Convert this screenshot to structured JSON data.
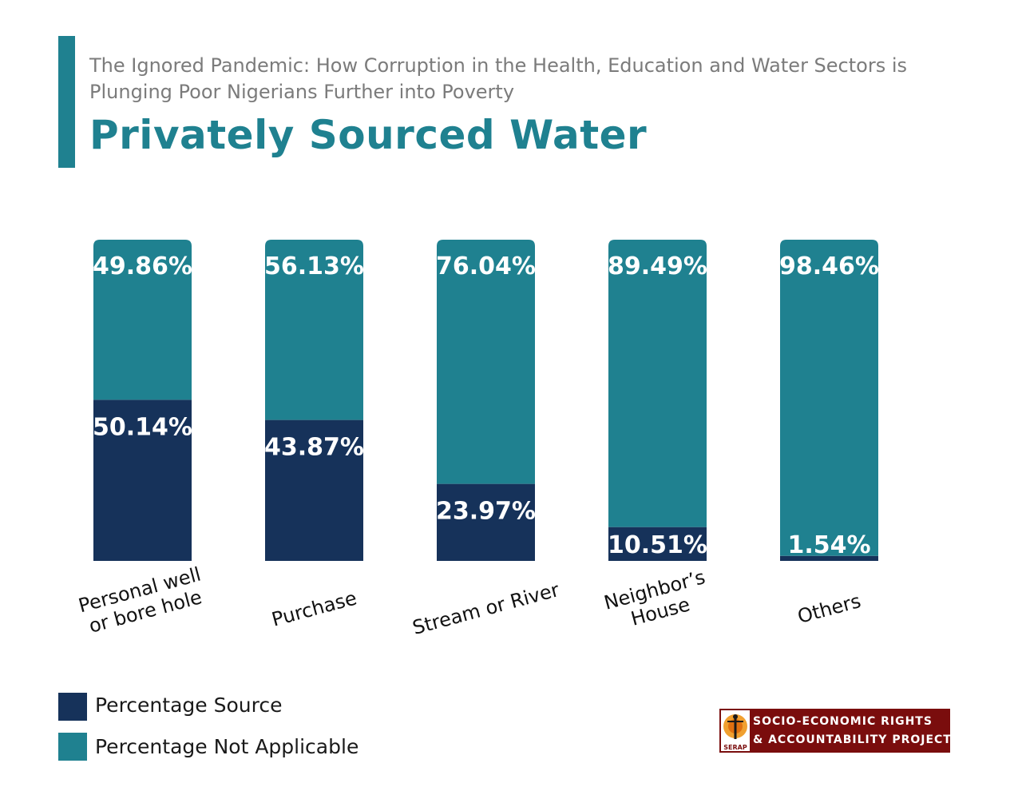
{
  "header": {
    "subtitle": "The Ignored Pandemic: How Corruption in the Health, Education and Water Sectors is Plunging Poor Nigerians Further into Poverty",
    "title": "Privately Sourced Water"
  },
  "colors": {
    "source": "#16325a",
    "not_applicable": "#1f8190",
    "accent": "#1f8190",
    "logo_bg": "#7a0d0d"
  },
  "chart_data": {
    "type": "bar",
    "stacked": true,
    "categories": [
      [
        "Personal well",
        "or bore hole"
      ],
      [
        "Purchase"
      ],
      [
        "Stream or River"
      ],
      [
        "Neighbor’s",
        "House"
      ],
      [
        "Others"
      ]
    ],
    "series": [
      {
        "name": "Percentage Source",
        "values": [
          50.14,
          43.87,
          23.97,
          10.51,
          1.54
        ],
        "labels": [
          "50.14%",
          "43.87%",
          "23.97%",
          "10.51%",
          "1.54%"
        ]
      },
      {
        "name": "Percentage Not Applicable",
        "values": [
          49.86,
          56.13,
          76.04,
          89.49,
          98.46
        ],
        "labels": [
          "49.86%",
          "56.13%",
          "76.04%",
          "89.49%",
          "98.46%"
        ]
      }
    ],
    "ylim": [
      0,
      100
    ],
    "grid": false,
    "legend": "bottom-left"
  },
  "legend": {
    "items": [
      {
        "label": "Percentage Source",
        "color": "#16325a"
      },
      {
        "label": "Percentage Not Applicable",
        "color": "#1f8190"
      }
    ]
  },
  "logo": {
    "line1": "SOCIO-ECONOMIC RIGHTS",
    "line2": "& ACCOUNTABILITY PROJECT",
    "abbr": "SERAP"
  }
}
